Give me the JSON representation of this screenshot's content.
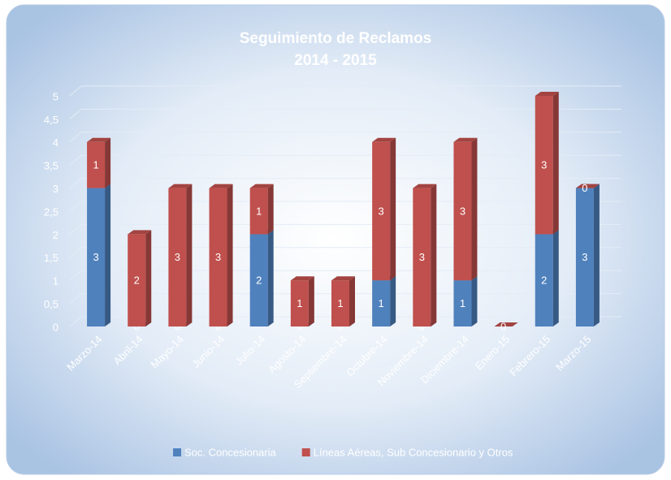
{
  "chart_data": {
    "type": "bar",
    "stacked": true,
    "title": "Seguimiento de Reclamos",
    "subtitle": "2014 - 2015",
    "categories": [
      "Marzo-14",
      "Abril-14",
      "Mayo-14",
      "Junio-14",
      "Julio-14",
      "Agosto-14",
      "Septiembre-14",
      "Octubre-14",
      "Noviembre-14",
      "Diciembre-14",
      "Enero-15",
      "Febrero-15",
      "Marzo-15"
    ],
    "series": [
      {
        "name": "Soc. Concesionaria",
        "color": "#4f81bd",
        "values": [
          3,
          0,
          0,
          0,
          2,
          0,
          0,
          1,
          0,
          1,
          0,
          2,
          3
        ]
      },
      {
        "name": "Líneas Aéreas, Sub Concesionario y Otros",
        "color": "#c0504d",
        "values": [
          1,
          2,
          3,
          3,
          1,
          1,
          1,
          3,
          3,
          3,
          0,
          3,
          0
        ]
      }
    ],
    "ylim": [
      0,
      5
    ],
    "yticks": [
      0,
      {
        "value": 0.5,
        "label": "0,5"
      },
      1,
      {
        "value": 1.5,
        "label": "1,5"
      },
      2,
      {
        "value": 2.5,
        "label": "2,5"
      },
      3,
      {
        "value": 3.5,
        "label": "3,5"
      },
      4,
      {
        "value": 4.5,
        "label": "4,5"
      },
      5
    ],
    "grid": true,
    "legend": "bottom"
  }
}
